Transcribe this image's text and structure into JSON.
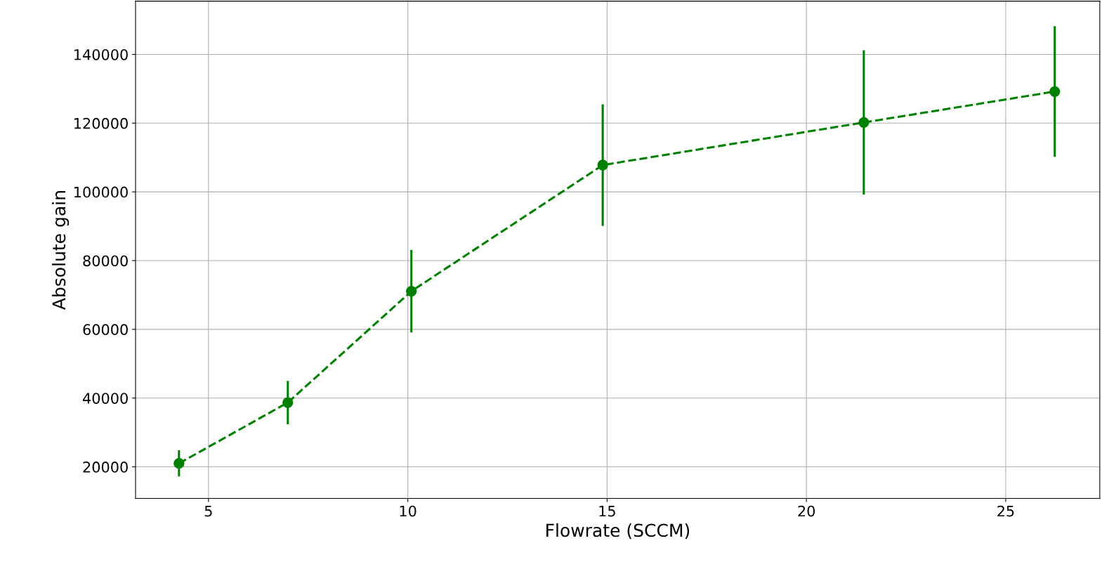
{
  "chart_data": {
    "type": "line",
    "xlabel": "Flowrate (SCCM)",
    "ylabel": "Absolute gain",
    "x": [
      4.26,
      6.99,
      10.09,
      14.89,
      21.44,
      26.23
    ],
    "series": [
      {
        "color": "#008000",
        "values": [
          21000,
          38700,
          71100,
          107800,
          120200,
          129200
        ],
        "errors": [
          3800,
          6300,
          12000,
          17700,
          21000,
          19000
        ]
      }
    ],
    "xlim": [
      3.17,
      27.36
    ],
    "xticks": [
      5,
      10,
      15,
      20,
      25
    ],
    "ylim": [
      10800,
      155500
    ],
    "yticks": [
      20000,
      40000,
      60000,
      80000,
      100000,
      120000,
      140000
    ],
    "grid": true,
    "marker": "circle",
    "line_style": "dashed"
  }
}
